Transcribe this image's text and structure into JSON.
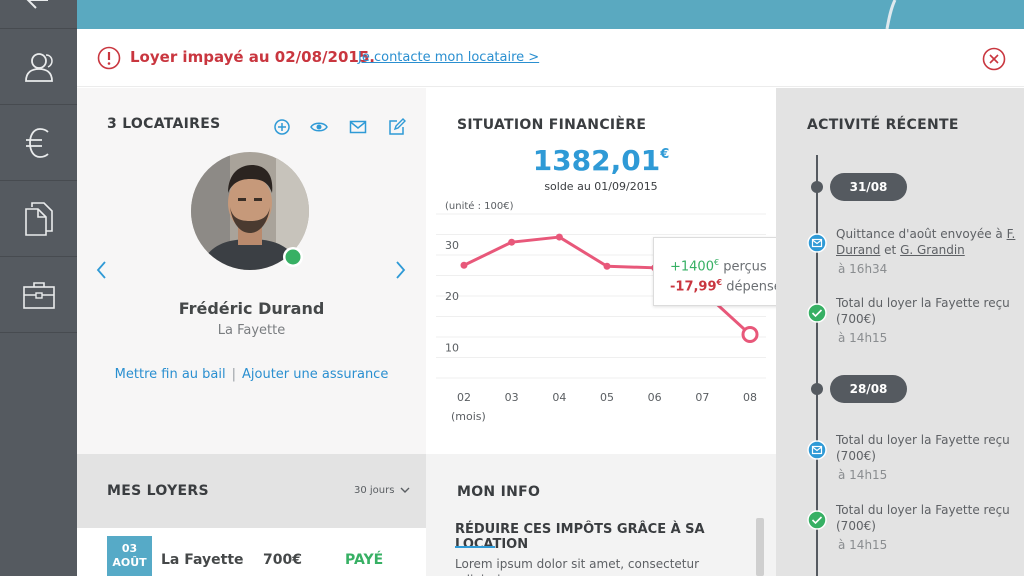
{
  "alert": {
    "message": "Loyer impayé au 02/08/2015.",
    "link": "Je contacte mon locataire >"
  },
  "tenants": {
    "title": "3 LOCATAIRES",
    "name": "Frédéric Durand",
    "place": "La Fayette",
    "link_end": "Mettre fin au bail",
    "link_insurance": "Ajouter une assurance"
  },
  "finance": {
    "title": "SITUATION FINANCIÈRE",
    "balance": "1382,01",
    "currency": "€",
    "balance_label": "solde au 01/09/2015",
    "unit": "(unité : 100€)",
    "tooltip": {
      "received_value": "+1400",
      "received_currency": "€",
      "received_label": "perçus",
      "spent_value": "-17,99",
      "spent_currency": "€",
      "spent_label": "dépensés",
      "close": "×"
    }
  },
  "chart_data": {
    "type": "line",
    "categories": [
      "02",
      "03",
      "04",
      "05",
      "06",
      "07",
      "08"
    ],
    "values": [
      26,
      30.5,
      31.5,
      25.8,
      25.5,
      21,
      12.5
    ],
    "xlabel": "(mois)",
    "ylabel": "(unité : 100€)",
    "yticks": [
      10,
      20,
      30
    ],
    "ylim": [
      4,
      36
    ],
    "grid": true,
    "line_color": "#e8587a"
  },
  "activity": {
    "title": "ACTIVITÉ RÉCENTE",
    "groups": [
      {
        "date": "31/08",
        "items": [
          {
            "type": "mail",
            "text_pre": "Quittance d'août envoyée à ",
            "who1": "F. Durand",
            "and": " et ",
            "who2": "G. Grandin",
            "time": "à 16h34"
          },
          {
            "type": "check",
            "text": "Total du loyer la Fayette reçu (700€)",
            "time": "à 14h15"
          }
        ]
      },
      {
        "date": "28/08",
        "items": [
          {
            "type": "mail",
            "text": "Total du loyer la Fayette reçu (700€)",
            "time": "à 14h15"
          },
          {
            "type": "check",
            "text": "Total du loyer la Fayette reçu (700€)",
            "time": "à 14h15"
          }
        ]
      }
    ]
  },
  "loyers": {
    "title": "MES LOYERS",
    "period": "30 jours",
    "row": {
      "day": "03",
      "month": "AOÛT",
      "name": "La Fayette",
      "amount": "700€",
      "status": "PAYÉ"
    }
  },
  "info": {
    "title": "MON INFO",
    "heading": "RÉDUIRE CES IMPÔTS GRÂCE À SA LOCATION",
    "paragraph": "Lorem ipsum dolor sit amet, consectetur adipiscing"
  },
  "colors": {
    "rail": "#555a60",
    "accent_blue": "#2f9ad6",
    "alert_red": "#c9363f",
    "paid_green": "#37b064",
    "chart_pink": "#e8587a",
    "top_band": "#5aa9c0"
  },
  "icons": [
    "back-arrow-icon",
    "users-icon",
    "euro-icon",
    "documents-icon",
    "briefcase-icon",
    "warning-icon",
    "close-circle-icon",
    "add-icon",
    "view-icon",
    "mail-icon",
    "edit-icon",
    "chevron-left-icon",
    "chevron-right-icon",
    "online-status-icon",
    "chevron-down-icon"
  ]
}
